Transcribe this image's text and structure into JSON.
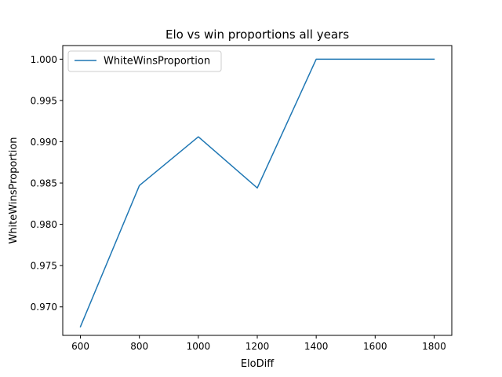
{
  "chart_data": {
    "type": "line",
    "title": "Elo vs win proportions all years",
    "xlabel": "EloDiff",
    "ylabel": "WhiteWinsProportion",
    "xlim": [
      540,
      1860
    ],
    "ylim": [
      0.96655,
      1.00165
    ],
    "x_ticks": [
      600,
      800,
      1000,
      1200,
      1400,
      1600,
      1800
    ],
    "y_ticks": [
      0.97,
      0.975,
      0.98,
      0.985,
      0.99,
      0.995,
      1.0
    ],
    "x_tick_labels": [
      "600",
      "800",
      "1000",
      "1200",
      "1400",
      "1600",
      "1800"
    ],
    "y_tick_labels": [
      "0.970",
      "0.975",
      "0.980",
      "0.985",
      "0.990",
      "0.995",
      "1.000"
    ],
    "legend_position": "top-left",
    "grid": false,
    "series": [
      {
        "name": "WhiteWinsProportion",
        "color": "#1f77b4",
        "x": [
          600,
          800,
          1000,
          1200,
          1400,
          1600,
          1800
        ],
        "y": [
          0.9676,
          0.9847,
          0.9906,
          0.9844,
          1.0,
          1.0,
          1.0
        ]
      }
    ]
  }
}
